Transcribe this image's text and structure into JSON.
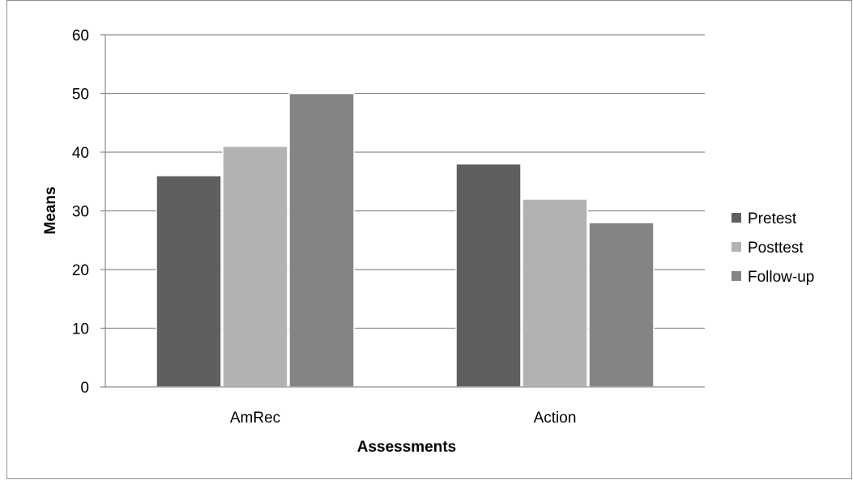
{
  "chart_data": {
    "type": "bar",
    "categories": [
      "AmRec",
      "Action"
    ],
    "series": [
      {
        "name": "Pretest",
        "values": [
          36,
          38
        ],
        "color": "#5f5f5f"
      },
      {
        "name": "Posttest",
        "values": [
          41,
          32
        ],
        "color": "#b2b2b2"
      },
      {
        "name": "Follow-up",
        "values": [
          50,
          28
        ],
        "color": "#848484"
      }
    ],
    "xlabel": "Assessments",
    "ylabel": "Means",
    "ylim": [
      0,
      60
    ],
    "yticks": [
      "0",
      "10",
      "20",
      "30",
      "40",
      "50",
      "60"
    ],
    "grid": true,
    "legend_position": "right"
  }
}
